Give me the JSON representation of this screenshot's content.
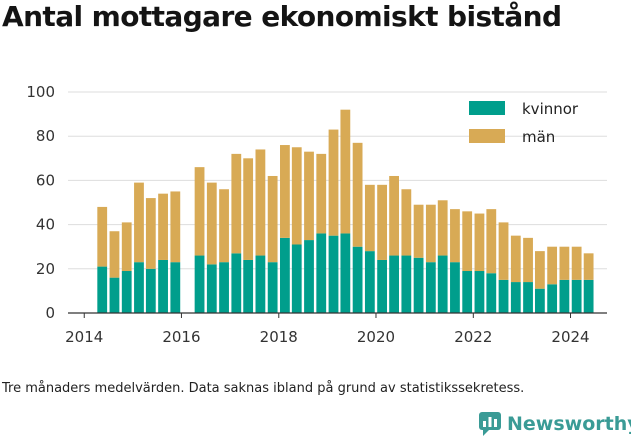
{
  "title": "Antal mottagare ekonomiskt bistånd",
  "footnote": "Tre månaders medelvärden. Data saknas ibland på grund av statistikssekretess.",
  "brand": "Newsworthy",
  "colors": {
    "kvinnor": "#009e8c",
    "man": "#d8aa55",
    "grid": "#dddddd",
    "axis": "#333333"
  },
  "chart_data": {
    "type": "bar",
    "stacked": true,
    "x_type": "date",
    "xlim": [
      "2013-09-01",
      "2024-10-01"
    ],
    "ylim": [
      0,
      100
    ],
    "yticks": [
      0,
      20,
      40,
      60,
      80,
      100
    ],
    "xticks": [
      {
        "label": "2014",
        "date": "2014-01-01"
      },
      {
        "label": "2016",
        "date": "2016-01-01"
      },
      {
        "label": "2018",
        "date": "2018-01-01"
      },
      {
        "label": "2020",
        "date": "2020-01-01"
      },
      {
        "label": "2022",
        "date": "2022-01-01"
      },
      {
        "label": "2024",
        "date": "2024-01-01"
      }
    ],
    "grid": "horizontal",
    "legend_position": "top-right",
    "dates": [
      "2014-05",
      "2014-08",
      "2014-11",
      "2015-02",
      "2015-05",
      "2015-08",
      "2015-11",
      "2016-05",
      "2016-08",
      "2016-11",
      "2017-02",
      "2017-05",
      "2017-08",
      "2017-11",
      "2018-02",
      "2018-05",
      "2018-08",
      "2018-11",
      "2019-02",
      "2019-05",
      "2019-08",
      "2019-11",
      "2020-02",
      "2020-05",
      "2020-08",
      "2020-11",
      "2021-02",
      "2021-05",
      "2021-08",
      "2021-11",
      "2022-02",
      "2022-05",
      "2022-08",
      "2022-11",
      "2023-02",
      "2023-05",
      "2023-08",
      "2023-11",
      "2024-02",
      "2024-05"
    ],
    "series": [
      {
        "name": "kvinnor",
        "values": [
          21,
          16,
          19,
          23,
          20,
          24,
          23,
          26,
          22,
          23,
          27,
          24,
          26,
          23,
          34,
          31,
          33,
          36,
          35,
          36,
          30,
          28,
          24,
          26,
          26,
          25,
          23,
          26,
          23,
          19,
          19,
          18,
          15,
          14,
          14,
          11,
          13,
          15,
          15,
          15
        ]
      },
      {
        "name": "män",
        "values": [
          27,
          21,
          22,
          36,
          32,
          30,
          32,
          40,
          37,
          33,
          45,
          46,
          48,
          39,
          42,
          44,
          40,
          36,
          48,
          56,
          47,
          30,
          34,
          36,
          30,
          24,
          26,
          25,
          24,
          27,
          26,
          29,
          26,
          21,
          20,
          17,
          17,
          15,
          15,
          12
        ]
      }
    ]
  }
}
